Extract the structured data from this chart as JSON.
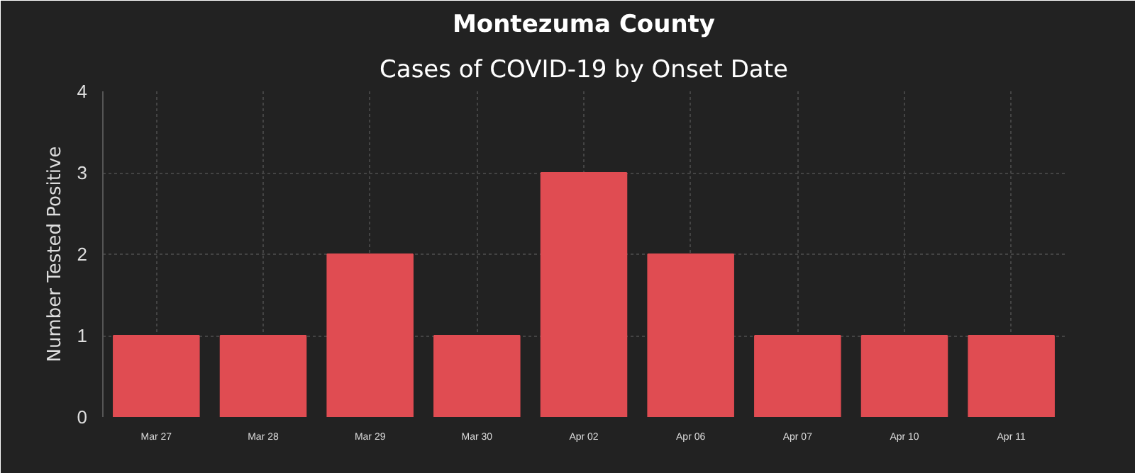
{
  "chart_data": {
    "type": "bar",
    "title": "Montezuma County",
    "subtitle": "Cases of COVID-19 by Onset Date",
    "ylabel": "Number Tested Positive",
    "categories": [
      "Mar 27",
      "Mar 28",
      "Mar 29",
      "Mar 30",
      "Apr 02",
      "Apr 06",
      "Apr 07",
      "Apr 10",
      "Apr 11"
    ],
    "values": [
      1,
      1,
      2,
      1,
      3,
      2,
      1,
      1,
      1
    ],
    "color": "#e04c52",
    "ylim": [
      0,
      4
    ],
    "yticks": [
      0,
      1,
      2,
      3,
      4
    ],
    "grid": true
  }
}
